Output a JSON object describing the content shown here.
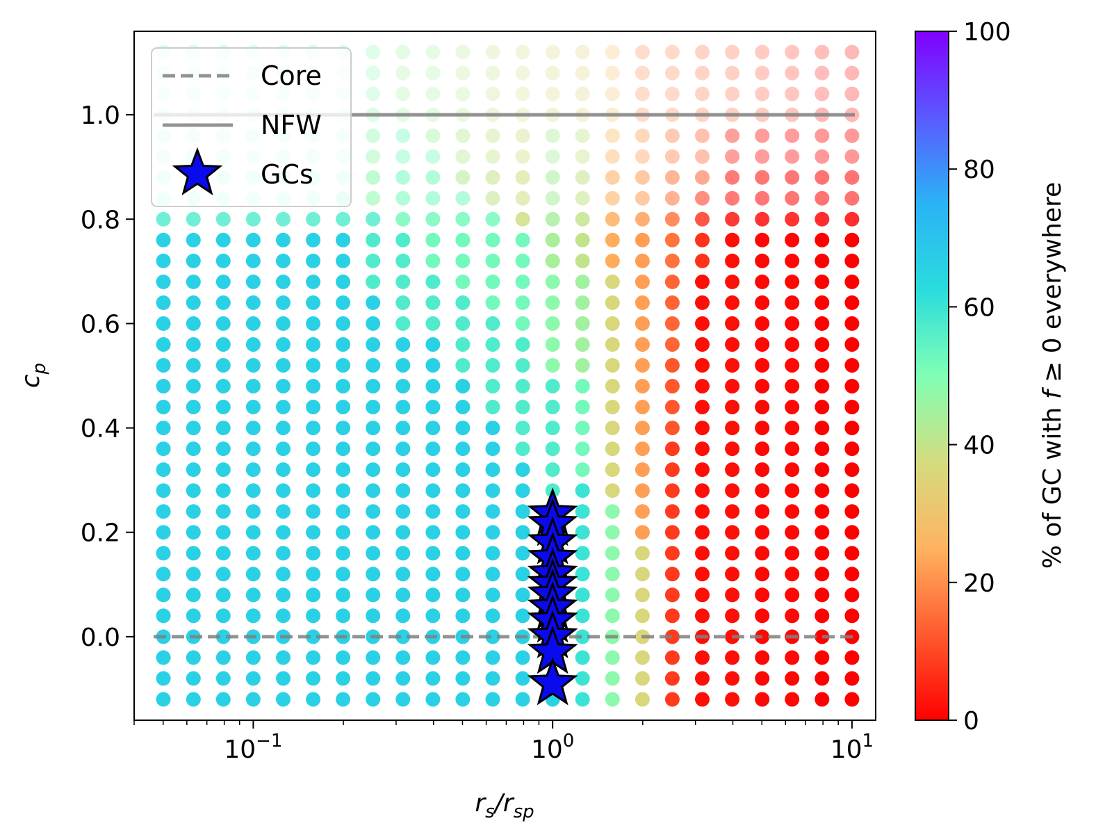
{
  "chart_data": {
    "type": "scatter",
    "xlabel_base": "r",
    "xlabel_sub1": "s",
    "xlabel_mid": "/r",
    "xlabel_sub2": "sp",
    "ylabel_base": "c",
    "ylabel_sub": "p",
    "x_scale": "log",
    "xlim": [
      0.04,
      12
    ],
    "ylim": [
      -0.16,
      1.16
    ],
    "x_ticks": [
      {
        "value": 0.1,
        "base": "10",
        "exp": "−1"
      },
      {
        "value": 1,
        "base": "10",
        "exp": "0"
      },
      {
        "value": 10,
        "base": "10",
        "exp": "1"
      }
    ],
    "y_ticks": [
      {
        "value": 0.0,
        "label": "0.0"
      },
      {
        "value": 0.2,
        "label": "0.2"
      },
      {
        "value": 0.4,
        "label": "0.4"
      },
      {
        "value": 0.6,
        "label": "0.6"
      },
      {
        "value": 0.8,
        "label": "0.8"
      },
      {
        "value": 1.0,
        "label": "1.0"
      }
    ],
    "grid_x": [
      0.0501,
      0.0631,
      0.0794,
      0.1,
      0.1259,
      0.1585,
      0.1995,
      0.2512,
      0.3162,
      0.3981,
      0.5012,
      0.631,
      0.7943,
      1.0,
      1.2589,
      1.5849,
      1.9953,
      2.5119,
      3.1623,
      3.9811,
      5.0119,
      6.3096,
      7.9433,
      10.0
    ],
    "grid_y": [
      -0.12,
      -0.08,
      -0.04,
      0.0,
      0.04,
      0.08,
      0.12,
      0.16,
      0.2,
      0.24,
      0.28,
      0.32,
      0.36,
      0.4,
      0.44,
      0.48,
      0.52,
      0.56,
      0.6,
      0.64,
      0.68,
      0.72,
      0.76,
      0.8,
      0.84,
      0.88,
      0.92,
      0.96,
      1.0,
      1.04,
      1.08,
      1.12
    ],
    "column_percent_by_row_range": [
      [
        {
          "upto": 0.78,
          "v": 66
        },
        {
          "upto": 0.82,
          "v": 57
        },
        {
          "upto": 2,
          "v": 52
        }
      ],
      [
        {
          "upto": 0.78,
          "v": 66
        },
        {
          "upto": 0.82,
          "v": 57
        },
        {
          "upto": 2,
          "v": 52
        }
      ],
      [
        {
          "upto": 0.78,
          "v": 66
        },
        {
          "upto": 0.82,
          "v": 57
        },
        {
          "upto": 2,
          "v": 52
        }
      ],
      [
        {
          "upto": 0.78,
          "v": 66
        },
        {
          "upto": 0.82,
          "v": 57
        },
        {
          "upto": 2,
          "v": 52
        }
      ],
      [
        {
          "upto": 0.78,
          "v": 66
        },
        {
          "upto": 0.82,
          "v": 57
        },
        {
          "upto": 2,
          "v": 52
        }
      ],
      [
        {
          "upto": 0.78,
          "v": 66
        },
        {
          "upto": 0.82,
          "v": 57
        },
        {
          "upto": 2,
          "v": 52
        }
      ],
      [
        {
          "upto": 0.78,
          "v": 66
        },
        {
          "upto": 0.86,
          "v": 57
        },
        {
          "upto": 2,
          "v": 51
        }
      ],
      [
        {
          "upto": 0.66,
          "v": 66
        },
        {
          "upto": 0.8,
          "v": 57
        },
        {
          "upto": 2,
          "v": 48
        }
      ],
      [
        {
          "upto": 0.58,
          "v": 66
        },
        {
          "upto": 0.76,
          "v": 57
        },
        {
          "upto": 0.98,
          "v": 52
        },
        {
          "upto": 2,
          "v": 45
        }
      ],
      [
        {
          "upto": 0.58,
          "v": 66
        },
        {
          "upto": 0.7,
          "v": 57
        },
        {
          "upto": 0.92,
          "v": 52
        },
        {
          "upto": 2,
          "v": 45
        }
      ],
      [
        {
          "upto": 0.5,
          "v": 66
        },
        {
          "upto": 0.66,
          "v": 57
        },
        {
          "upto": 0.86,
          "v": 52
        },
        {
          "upto": 2,
          "v": 42
        }
      ],
      [
        {
          "upto": 0.42,
          "v": 66
        },
        {
          "upto": 0.62,
          "v": 57
        },
        {
          "upto": 0.82,
          "v": 52
        },
        {
          "upto": 2,
          "v": 40
        }
      ],
      [
        {
          "upto": 0.34,
          "v": 66
        },
        {
          "upto": 0.58,
          "v": 57
        },
        {
          "upto": 0.78,
          "v": 52
        },
        {
          "upto": 2,
          "v": 38
        }
      ],
      [
        {
          "upto": 0.22,
          "v": 66
        },
        {
          "upto": 0.5,
          "v": 57
        },
        {
          "upto": 0.7,
          "v": 48
        },
        {
          "upto": 0.98,
          "v": 44
        },
        {
          "upto": 2,
          "v": 36
        }
      ],
      [
        {
          "upto": 0.3,
          "v": 60
        },
        {
          "upto": 0.5,
          "v": 52
        },
        {
          "upto": 0.7,
          "v": 45
        },
        {
          "upto": 0.98,
          "v": 40
        },
        {
          "upto": 2,
          "v": 34
        }
      ],
      [
        {
          "upto": 0.26,
          "v": 48
        },
        {
          "upto": 0.7,
          "v": 36
        },
        {
          "upto": 0.94,
          "v": 24
        },
        {
          "upto": 2,
          "v": 28
        }
      ],
      [
        {
          "upto": 0.18,
          "v": 36
        },
        {
          "upto": 0.98,
          "v": 22
        },
        {
          "upto": 2,
          "v": 18
        }
      ],
      [
        {
          "upto": 0.38,
          "v": 8
        },
        {
          "upto": 0.54,
          "v": 12
        },
        {
          "upto": 0.7,
          "v": 14
        },
        {
          "upto": 0.86,
          "v": 16
        },
        {
          "upto": 2,
          "v": 17
        }
      ],
      [
        {
          "upto": 0.7,
          "v": 2
        },
        {
          "upto": 0.86,
          "v": 7
        },
        {
          "upto": 2,
          "v": 14
        }
      ],
      [
        {
          "upto": 0.98,
          "v": 2
        },
        {
          "upto": 2,
          "v": 12
        }
      ],
      [
        {
          "upto": 0.98,
          "v": 1
        },
        {
          "upto": 2,
          "v": 10
        }
      ],
      [
        {
          "upto": 0.98,
          "v": 1
        },
        {
          "upto": 2,
          "v": 7
        }
      ],
      [
        {
          "upto": 1.02,
          "v": 0
        },
        {
          "upto": 2,
          "v": 3
        }
      ],
      [
        {
          "upto": 2,
          "v": 0
        }
      ]
    ],
    "dot_alpha_by_row_range": [
      {
        "upto": 0.78,
        "alpha": 1.0
      },
      {
        "upto": 0.82,
        "alpha": 0.82
      },
      {
        "upto": 0.9,
        "alpha": 0.55
      },
      {
        "upto": 0.98,
        "alpha": 0.4
      },
      {
        "upto": 2,
        "alpha": 0.28
      }
    ],
    "reference_lines": [
      {
        "name": "Core",
        "y": 0.0,
        "style": "dashed",
        "color": "#808080"
      },
      {
        "name": "NFW",
        "y": 1.0,
        "style": "solid",
        "color": "#808080"
      }
    ],
    "gc_series": {
      "name": "GCs",
      "color": "#0a0aee",
      "x": [
        1.0,
        1.0,
        1.0,
        1.0,
        1.0,
        1.0,
        1.0,
        1.0,
        1.0,
        1.0,
        1.0,
        1.0
      ],
      "y": [
        0.235,
        0.215,
        0.18,
        0.15,
        0.12,
        0.1,
        0.08,
        0.055,
        0.03,
        0.0,
        -0.03,
        -0.09
      ]
    },
    "legend": {
      "placement": "upper-left",
      "entries": [
        {
          "label": "Core",
          "marker": "dashed-line"
        },
        {
          "label": "NFW",
          "marker": "solid-line"
        },
        {
          "label": "GCs",
          "marker": "star"
        }
      ]
    },
    "colorbar": {
      "colormap": "rainbow",
      "range": [
        0,
        100
      ],
      "ticks": [
        "0",
        "20",
        "40",
        "60",
        "80",
        "100"
      ],
      "label_prefix": "% of GC with ",
      "label_var": "f",
      "label_suffix": " ≥ 0 everywhere"
    }
  }
}
